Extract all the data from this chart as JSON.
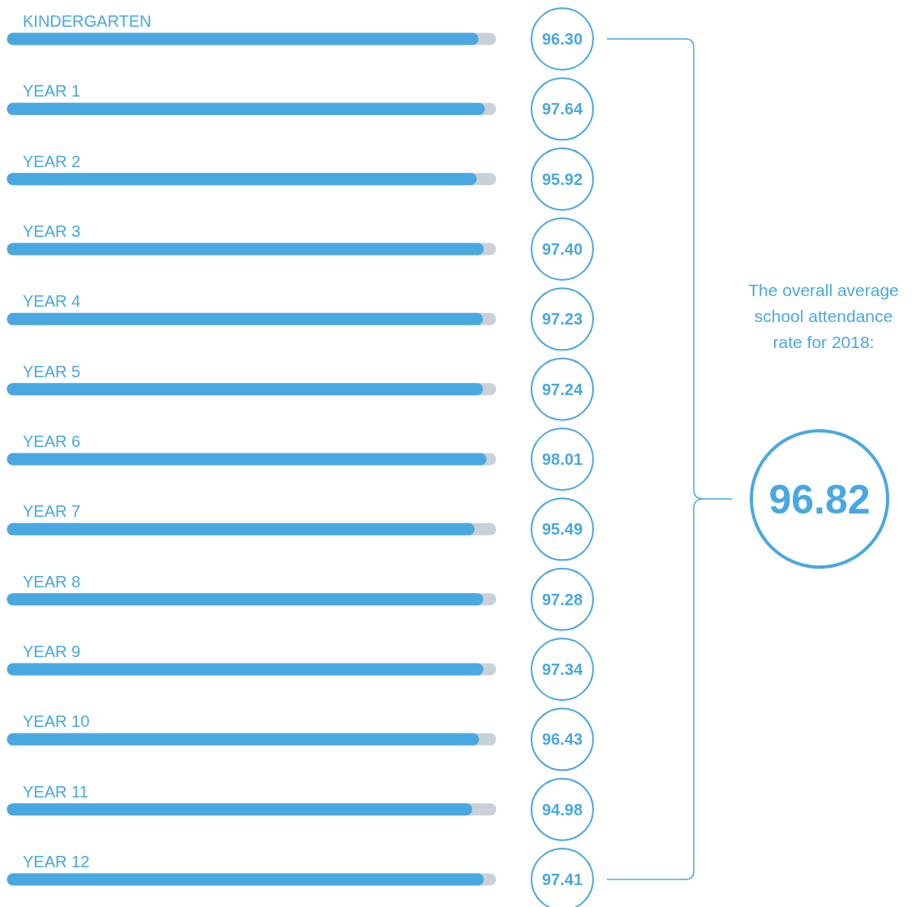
{
  "chart_data": {
    "type": "bar",
    "orientation": "horizontal",
    "categories": [
      "KINDERGARTEN",
      "YEAR 1",
      "YEAR 2",
      "YEAR 3",
      "YEAR 4",
      "YEAR 5",
      "YEAR 6",
      "YEAR 7",
      "YEAR 8",
      "YEAR 9",
      "YEAR 10",
      "YEAR 11",
      "YEAR 12"
    ],
    "values": [
      96.3,
      97.64,
      95.92,
      97.4,
      97.23,
      97.24,
      98.01,
      95.49,
      97.28,
      97.34,
      96.43,
      94.98,
      97.41
    ],
    "value_labels": [
      "96.30",
      "97.64",
      "95.92",
      "97.40",
      "97.23",
      "97.24",
      "98.01",
      "95.49",
      "97.28",
      "97.34",
      "96.43",
      "94.98",
      "97.41"
    ],
    "color": "#4aa8e0",
    "xlim": [
      0,
      100
    ],
    "annotations": [
      "The overall average school attendance rate for 2018:",
      "96.82"
    ]
  }
}
